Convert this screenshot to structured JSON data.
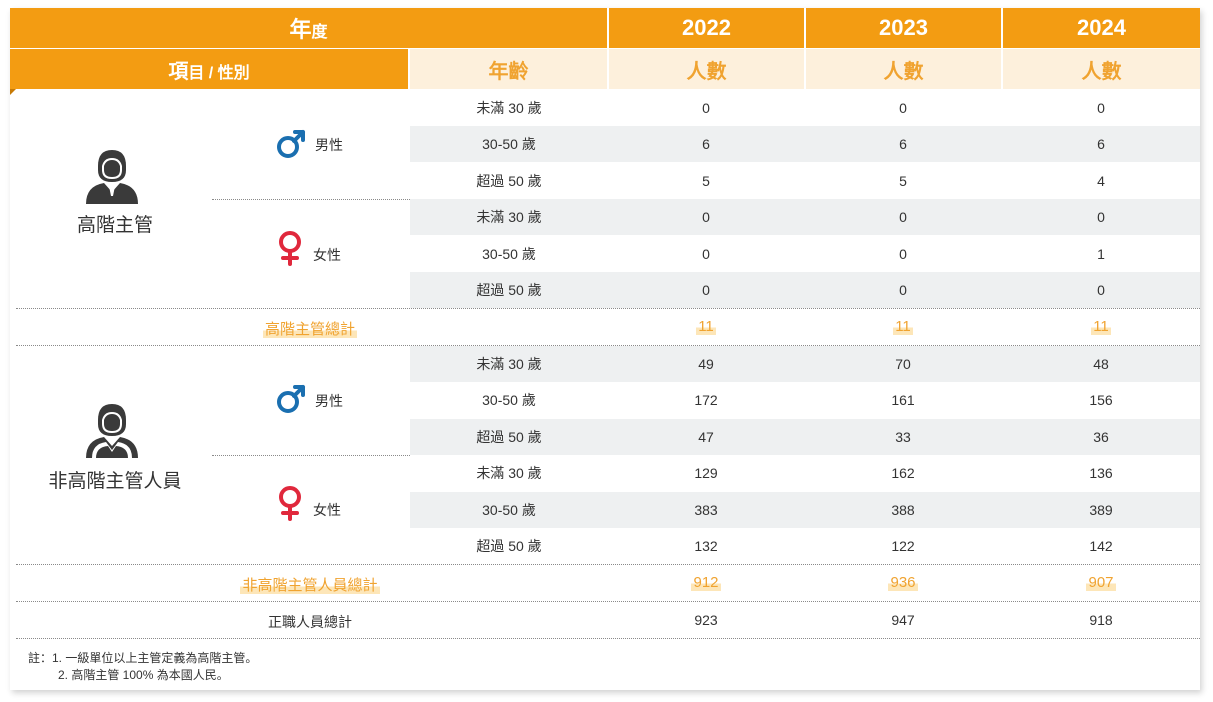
{
  "header": {
    "year_label_big": "年",
    "year_label_small": "度",
    "item_label_big": "項",
    "item_label_small": "目 / 性別",
    "age_label": "年齡",
    "years": [
      "2022",
      "2023",
      "2024"
    ],
    "count_label": "人數"
  },
  "groups": [
    {
      "name": "高階主管",
      "icon": "manager-person-icon",
      "genders": [
        {
          "label": "男性",
          "icon": "male-symbol-icon",
          "rows": [
            {
              "age": "未滿 30 歲",
              "values": [
                "0",
                "0",
                "0"
              ]
            },
            {
              "age": "30-50 歲",
              "values": [
                "6",
                "6",
                "6"
              ]
            },
            {
              "age": "超過 50 歲",
              "values": [
                "5",
                "5",
                "4"
              ]
            }
          ]
        },
        {
          "label": "女性",
          "icon": "female-symbol-icon",
          "rows": [
            {
              "age": "未滿 30 歲",
              "values": [
                "0",
                "0",
                "0"
              ]
            },
            {
              "age": "30-50 歲",
              "values": [
                "0",
                "0",
                "1"
              ]
            },
            {
              "age": "超過 50 歲",
              "values": [
                "0",
                "0",
                "0"
              ]
            }
          ]
        }
      ],
      "total_label": "高階主管總計",
      "total_values": [
        "11",
        "11",
        "11"
      ]
    },
    {
      "name": "非高階主管人員",
      "icon": "employee-person-icon",
      "genders": [
        {
          "label": "男性",
          "icon": "male-symbol-icon",
          "rows": [
            {
              "age": "未滿 30 歲",
              "values": [
                "49",
                "70",
                "48"
              ]
            },
            {
              "age": "30-50 歲",
              "values": [
                "172",
                "161",
                "156"
              ]
            },
            {
              "age": "超過 50 歲",
              "values": [
                "47",
                "33",
                "36"
              ]
            }
          ]
        },
        {
          "label": "女性",
          "icon": "female-symbol-icon",
          "rows": [
            {
              "age": "未滿 30 歲",
              "values": [
                "129",
                "162",
                "136"
              ]
            },
            {
              "age": "30-50 歲",
              "values": [
                "383",
                "388",
                "389"
              ]
            },
            {
              "age": "超過 50 歲",
              "values": [
                "132",
                "122",
                "142"
              ]
            }
          ]
        }
      ],
      "total_label": "非高階主管人員總計",
      "total_values": [
        "912",
        "936",
        "907"
      ]
    }
  ],
  "grand_total": {
    "label": "正職人員總計",
    "values": [
      "923",
      "947",
      "918"
    ]
  },
  "notes": [
    "註：1. 一級單位以上主管定義為高階主管。",
    "2. 高階主管 100% 為本國人民。"
  ],
  "colors": {
    "accent": "#f39c12",
    "cream": "#fdf0dc",
    "stripe": "#eef0f1",
    "icon_male_female": "#1a6fb0",
    "female": "#e0283c"
  }
}
